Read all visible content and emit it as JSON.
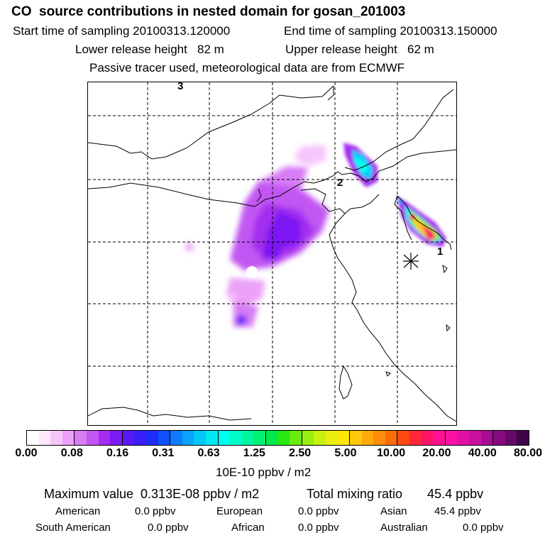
{
  "title": "CO  source contributions in nested domain for gosan_201003",
  "start_label": "Start time of sampling 20100313.120000",
  "end_label": "End time of sampling 20100313.150000",
  "lower_label": "Lower release height   82 m",
  "upper_label": "Upper release height   62 m",
  "tracer_note": "Passive tracer used, meteorological data are from ECMWF",
  "map": {
    "markers": [
      "3",
      "2",
      "1"
    ],
    "receptor_icon": "star-cross-icon"
  },
  "colorbar": {
    "ticks": [
      "0.00",
      "0.08",
      "0.16",
      "0.31",
      "0.63",
      "1.25",
      "2.50",
      "5.00",
      "10.00",
      "20.00",
      "40.00",
      "80.00"
    ],
    "unit": "10E-10 ppbv / m2",
    "colors": [
      "#ffffff",
      "#fde8fe",
      "#f6c6fb",
      "#eba2f8",
      "#d77cf5",
      "#c256f2",
      "#a42df0",
      "#7d19f2",
      "#5a18f5",
      "#3b1ff7",
      "#1f2dfa",
      "#0f52fb",
      "#0f7bfb",
      "#0aa2fa",
      "#00c8f8",
      "#00e8f2",
      "#00fff0",
      "#00fbc8",
      "#00f5a0",
      "#00f074",
      "#00e94a",
      "#28e80f",
      "#68eb10",
      "#98ee10",
      "#c8f010",
      "#eaef10",
      "#ffe60a",
      "#ffc80a",
      "#ffaa0a",
      "#ff8c0a",
      "#ff6c0a",
      "#ff4a10",
      "#ff2838",
      "#ff1466",
      "#ff1094",
      "#f812a6",
      "#e012a6",
      "#c810a0",
      "#a80c94",
      "#880a80",
      "#66086a",
      "#3e0648"
    ]
  },
  "summary": {
    "max_label": "Maximum value  0.313E-08 ppbv / m2",
    "total_label": "Total mixing ratio       45.4 ppbv",
    "regions": [
      {
        "name": "American",
        "value": "0.0 ppbv"
      },
      {
        "name": "European",
        "value": "0.0 ppbv"
      },
      {
        "name": "Asian",
        "value": "45.4 ppbv"
      },
      {
        "name": "South American",
        "value": "0.0 ppbv"
      },
      {
        "name": "African",
        "value": "0.0 ppbv"
      },
      {
        "name": "Australian",
        "value": "0.0 ppbv"
      }
    ]
  }
}
